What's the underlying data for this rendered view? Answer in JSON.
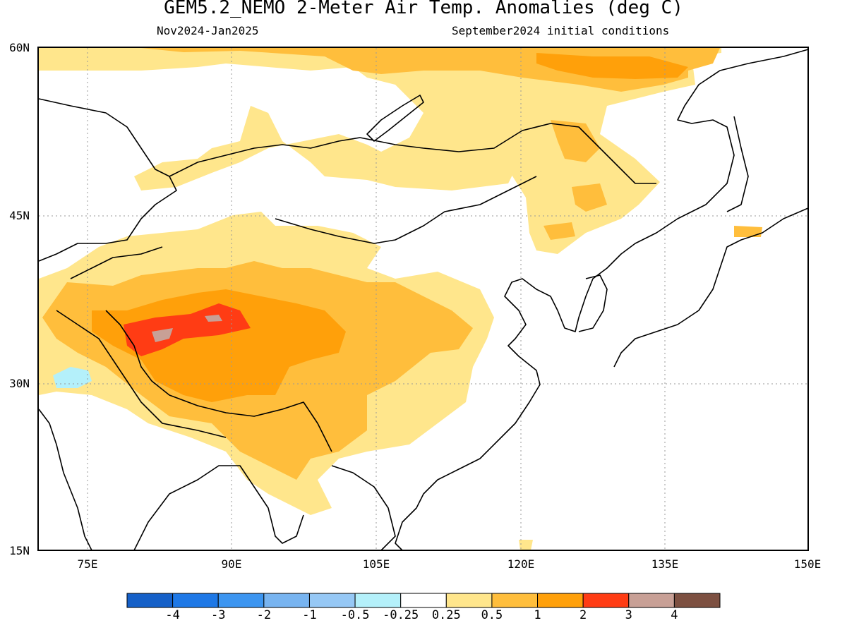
{
  "title": "GEM5.2_NEMO 2-Meter Air Temp. Anomalies (deg C)",
  "subtitle_left": "Nov2024-Jan2025",
  "subtitle_right": "September2024 initial conditions",
  "lat_labels": [
    "60N",
    "45N",
    "30N",
    "15N"
  ],
  "lon_labels": [
    "75E",
    "90E",
    "105E",
    "120E",
    "135E",
    "150E"
  ],
  "colorbar": {
    "labels": [
      "-4",
      "-3",
      "-2",
      "-1",
      "-0.5",
      "-0.25",
      "0.25",
      "0.5",
      "1",
      "2",
      "3",
      "4"
    ],
    "colors": [
      "#1560c8",
      "#1e78e6",
      "#3c95f0",
      "#78b4f0",
      "#96c8f5",
      "#b4f0fa",
      "#ffffff",
      "#ffe68c",
      "#ffbe3c",
      "#ffa00a",
      "#ff3c14",
      "#c8a096",
      "#7d5041"
    ]
  },
  "colors": {
    "frame": "#000000",
    "grid": "#999999"
  }
}
